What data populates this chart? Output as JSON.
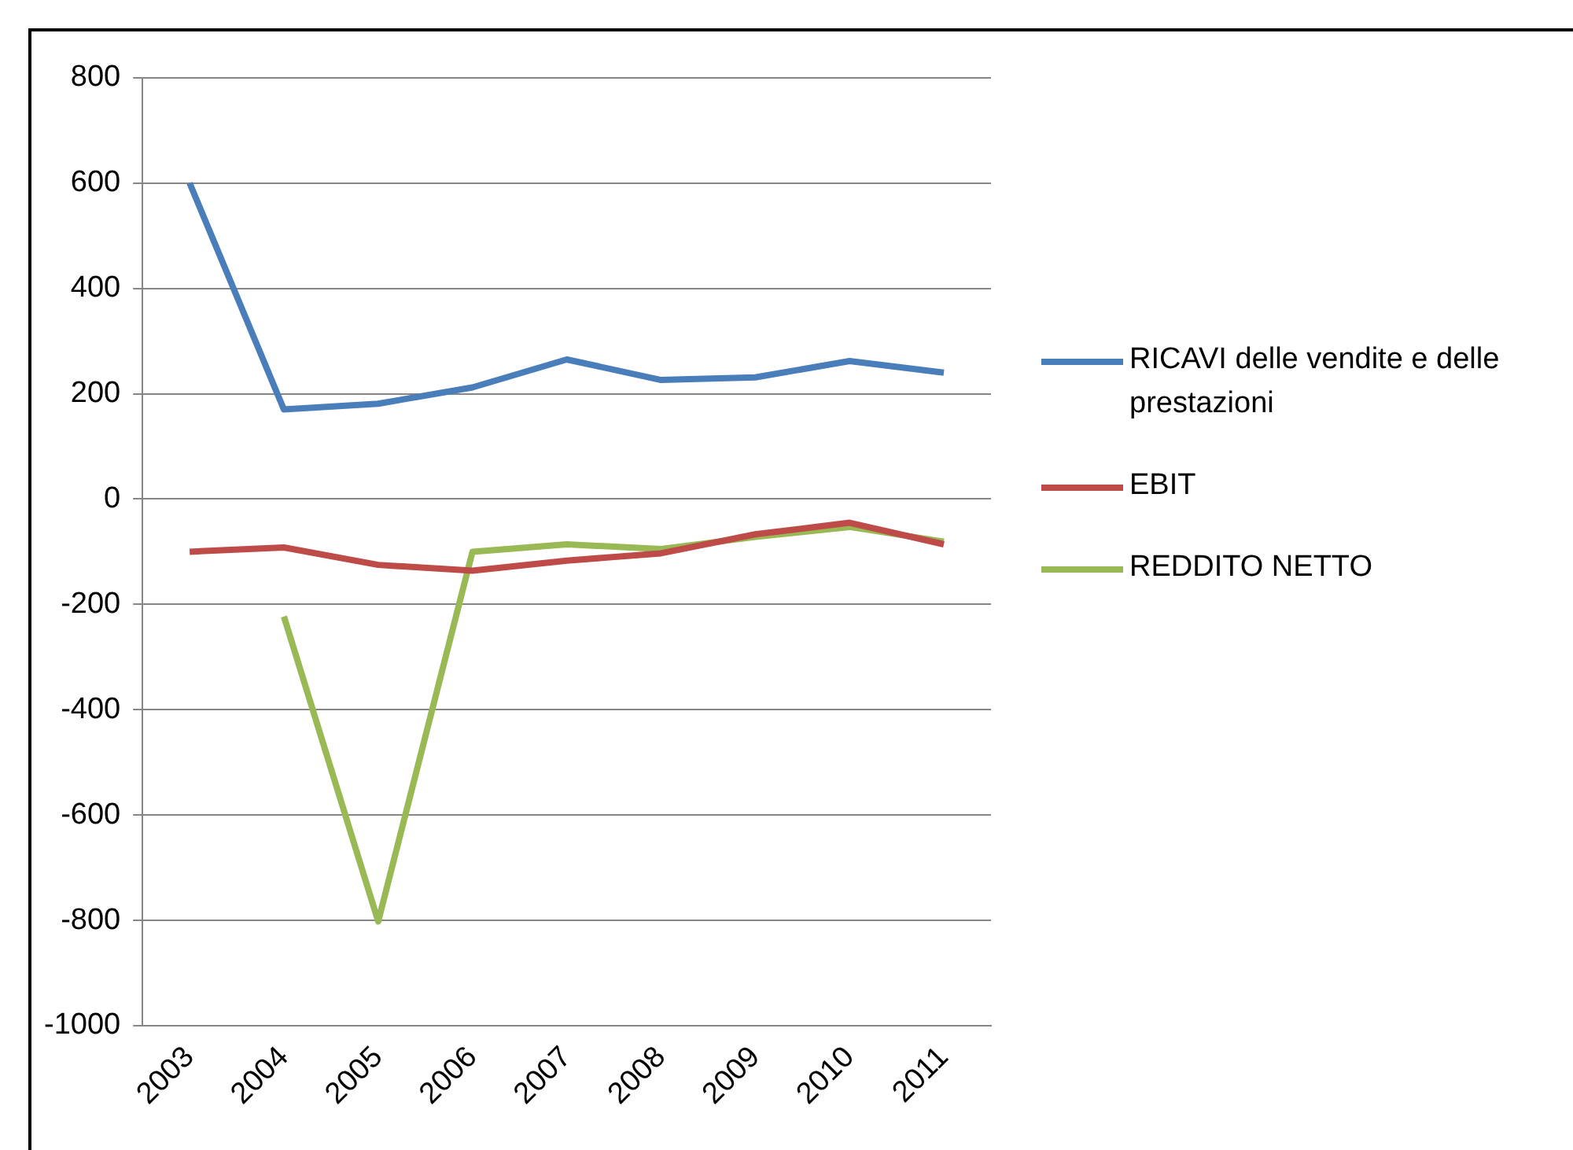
{
  "chart_data": {
    "type": "line",
    "categories": [
      "2003",
      "2004",
      "2005",
      "2006",
      "2007",
      "2008",
      "2009",
      "2010",
      "2011"
    ],
    "series": [
      {
        "name": "RICAVI  delle vendite e delle prestazioni",
        "color": "#4a7ebb",
        "values": [
          600,
          170,
          181,
          212,
          265,
          226,
          231,
          262,
          240
        ]
      },
      {
        "name": "EBIT",
        "color": "#be4b48",
        "values": [
          -100,
          -92,
          -125,
          -136,
          -117,
          -103,
          -67,
          -45,
          -86
        ]
      },
      {
        "name": "REDDITO NETTO",
        "color": "#98b954",
        "values": [
          null,
          -223,
          -802,
          -100,
          -86,
          -95,
          -72,
          -53,
          -81
        ]
      }
    ],
    "ylim": [
      -1000,
      800
    ],
    "yticks": [
      -1000,
      -800,
      -600,
      -400,
      -200,
      0,
      200,
      400,
      600,
      800
    ],
    "grid": "y",
    "legend": "right",
    "marker": "none"
  }
}
